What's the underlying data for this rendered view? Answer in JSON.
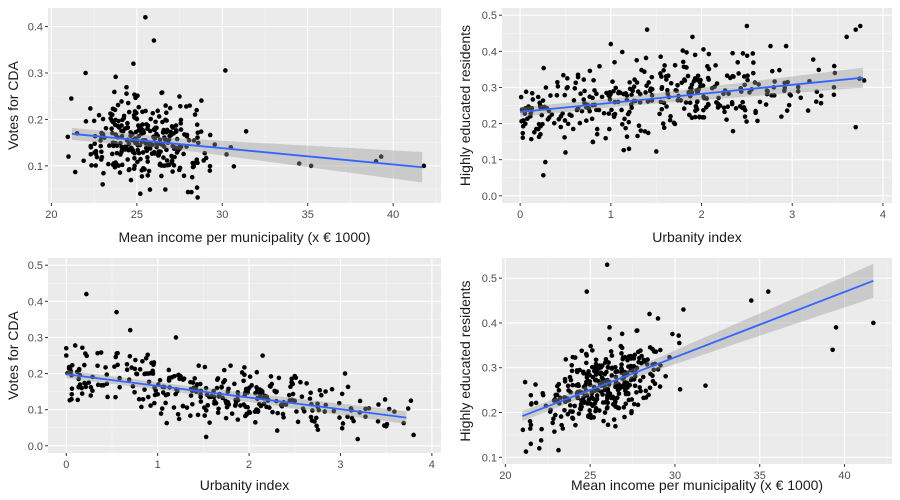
{
  "chart_data": [
    {
      "type": "scatter",
      "xlabel": "Mean income per municipality (x € 1000)",
      "ylabel": "Votes for CDA",
      "xlim": [
        19.8,
        42.8
      ],
      "ylim": [
        0.02,
        0.44
      ],
      "x_ticks": [
        20,
        25,
        30,
        35,
        40
      ],
      "y_ticks": [
        0.1,
        0.2,
        0.3,
        0.4
      ],
      "grid": true,
      "trend": {
        "x": [
          21.2,
          41.7
        ],
        "y": [
          0.169,
          0.097
        ],
        "ci_start": 0.012,
        "ci_end": 0.03
      },
      "seed": 11,
      "clusters": [
        {
          "n": 300,
          "x_mean": 25.5,
          "x_sd": 1.9,
          "y_mode": "line",
          "y_sd": 0.045,
          "x_min": 20.8,
          "x_max": 31.5
        }
      ],
      "points": [
        [
          25.5,
          0.42
        ],
        [
          26.0,
          0.37
        ],
        [
          24.8,
          0.32
        ],
        [
          22.0,
          0.3
        ],
        [
          34.5,
          0.105
        ],
        [
          35.2,
          0.1
        ],
        [
          39.0,
          0.11
        ],
        [
          39.3,
          0.12
        ],
        [
          41.8,
          0.1
        ],
        [
          25.2,
          0.04
        ],
        [
          23.0,
          0.06
        ],
        [
          21.5,
          0.17
        ],
        [
          28.5,
          0.22
        ],
        [
          30.5,
          0.14
        ]
      ]
    },
    {
      "type": "scatter",
      "xlabel": "Urbanity index",
      "ylabel": "Highly educated residents",
      "xlim": [
        -0.2,
        4.1
      ],
      "ylim": [
        -0.02,
        0.52
      ],
      "x_ticks": [
        0,
        1,
        2,
        3,
        4
      ],
      "y_ticks": [
        0.0,
        0.1,
        0.2,
        0.3,
        0.4,
        0.5
      ],
      "grid": true,
      "trend": {
        "x": [
          0.0,
          3.78
        ],
        "y": [
          0.232,
          0.327
        ],
        "ci_start": 0.012,
        "ci_end": 0.025
      },
      "seed": 23,
      "clusters": [
        {
          "n": 360,
          "x_mean": 1.5,
          "x_sd": 0.95,
          "y_mode": "line",
          "y_sd": 0.05,
          "x_min": 0.0,
          "x_max": 3.8
        }
      ],
      "points": [
        [
          1.4,
          0.46
        ],
        [
          0.5,
          0.12
        ],
        [
          1.0,
          0.42
        ],
        [
          1.9,
          0.44
        ],
        [
          2.5,
          0.47
        ],
        [
          3.6,
          0.44
        ],
        [
          3.7,
          0.46
        ],
        [
          3.75,
          0.47
        ],
        [
          3.7,
          0.19
        ],
        [
          1.2,
          0.13
        ]
      ]
    },
    {
      "type": "scatter",
      "xlabel": "Urbanity index",
      "ylabel": "Votes for CDA",
      "xlim": [
        -0.2,
        4.1
      ],
      "ylim": [
        -0.02,
        0.52
      ],
      "x_ticks": [
        0,
        1,
        2,
        3,
        4
      ],
      "y_ticks": [
        0.0,
        0.1,
        0.2,
        0.3,
        0.4,
        0.5
      ],
      "grid": true,
      "trend": {
        "x": [
          0.0,
          3.72
        ],
        "y": [
          0.198,
          0.078
        ],
        "ci_start": 0.01,
        "ci_end": 0.015
      },
      "seed": 37,
      "clusters": [
        {
          "n": 330,
          "x_mean": 1.6,
          "x_sd": 0.95,
          "y_mode": "line",
          "y_sd": 0.04,
          "x_min": 0.0,
          "x_max": 3.8
        }
      ],
      "points": [
        [
          0.22,
          0.42
        ],
        [
          0.55,
          0.37
        ],
        [
          0.7,
          0.32
        ],
        [
          0.0,
          0.27
        ],
        [
          0.0,
          0.25
        ],
        [
          3.8,
          0.03
        ],
        [
          3.05,
          0.2
        ],
        [
          1.2,
          0.3
        ]
      ]
    },
    {
      "type": "scatter",
      "xlabel": "Mean income per municipality (x € 1000)",
      "ylabel": "Highly educated residents",
      "xlim": [
        19.8,
        42.8
      ],
      "ylim": [
        0.085,
        0.545
      ],
      "x_ticks": [
        20,
        25,
        30,
        35,
        40
      ],
      "y_ticks": [
        0.1,
        0.2,
        0.3,
        0.4,
        0.5
      ],
      "grid": true,
      "trend": {
        "x": [
          21.0,
          41.7
        ],
        "y": [
          0.192,
          0.494
        ],
        "ci_start": 0.01,
        "ci_end": 0.035
      },
      "seed": 53,
      "clusters": [
        {
          "n": 330,
          "x_mean": 25.6,
          "x_sd": 1.9,
          "y_mode": "line",
          "y_sd": 0.045,
          "x_min": 21.0,
          "x_max": 32.0
        }
      ],
      "points": [
        [
          26.0,
          0.53
        ],
        [
          24.8,
          0.47
        ],
        [
          35.5,
          0.47
        ],
        [
          34.5,
          0.45
        ],
        [
          39.5,
          0.39
        ],
        [
          39.3,
          0.34
        ],
        [
          41.7,
          0.4
        ],
        [
          31.8,
          0.26
        ],
        [
          22.0,
          0.12
        ],
        [
          21.5,
          0.13
        ],
        [
          30.5,
          0.43
        ],
        [
          28.5,
          0.42
        ],
        [
          29.0,
          0.41
        ]
      ]
    }
  ]
}
